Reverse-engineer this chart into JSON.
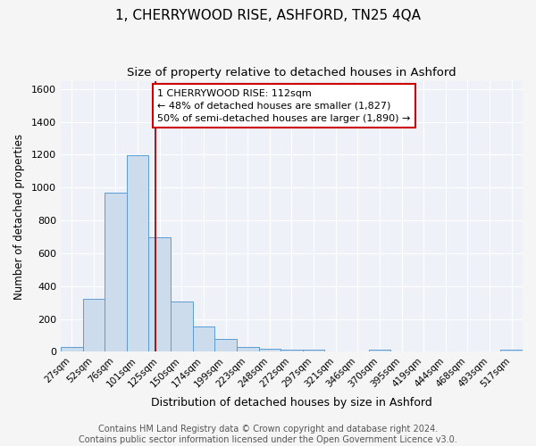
{
  "title": "1, CHERRYWOOD RISE, ASHFORD, TN25 4QA",
  "subtitle": "Size of property relative to detached houses in Ashford",
  "xlabel": "Distribution of detached houses by size in Ashford",
  "ylabel": "Number of detached properties",
  "categories": [
    "27sqm",
    "52sqm",
    "76sqm",
    "101sqm",
    "125sqm",
    "150sqm",
    "174sqm",
    "199sqm",
    "223sqm",
    "248sqm",
    "272sqm",
    "297sqm",
    "321sqm",
    "346sqm",
    "370sqm",
    "395sqm",
    "419sqm",
    "444sqm",
    "468sqm",
    "493sqm",
    "517sqm"
  ],
  "values": [
    30,
    325,
    968,
    1195,
    695,
    305,
    155,
    80,
    28,
    18,
    15,
    15,
    0,
    0,
    15,
    0,
    0,
    0,
    0,
    0,
    15
  ],
  "bar_color": "#ccdcec",
  "bar_edge_color": "#5b9bd5",
  "vline_color": "#aa0000",
  "annotation_text": "1 CHERRYWOOD RISE: 112sqm\n← 48% of detached houses are smaller (1,827)\n50% of semi-detached houses are larger (1,890) →",
  "annotation_box_color": "#ffffff",
  "annotation_box_edge_color": "#cc0000",
  "ylim": [
    0,
    1650
  ],
  "yticks": [
    0,
    200,
    400,
    600,
    800,
    1000,
    1200,
    1400,
    1600
  ],
  "footer_text": "Contains HM Land Registry data © Crown copyright and database right 2024.\nContains public sector information licensed under the Open Government Licence v3.0.",
  "bg_color": "#eef2f8",
  "grid_color": "#ffffff",
  "title_fontsize": 11,
  "subtitle_fontsize": 9.5,
  "annotation_fontsize": 8,
  "footer_fontsize": 7,
  "ylabel_fontsize": 8.5,
  "xlabel_fontsize": 9
}
